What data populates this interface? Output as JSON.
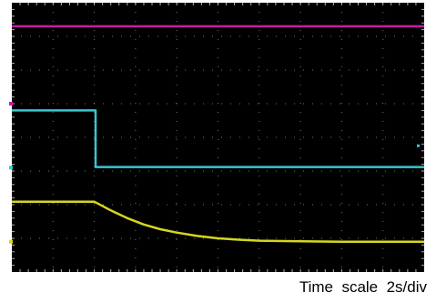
{
  "chart_data": {
    "type": "line",
    "xlabel": "",
    "ylabel": "",
    "grid": true,
    "divisions": {
      "x": 10,
      "y": 8
    },
    "caption": "Time  scale  2s/div",
    "colors": {
      "background": "#000000",
      "grid": "#ffffff",
      "magenta": "#c81aa8",
      "cyan": "#39c6cf",
      "yellow": "#d6d621"
    },
    "series": [
      {
        "color": "#c81aa8",
        "x": [
          0,
          10
        ],
        "y": [
          7.3,
          7.3
        ]
      },
      {
        "color": "#39c6cf",
        "x": [
          0,
          2.03,
          2.03,
          10
        ],
        "y": [
          4.8,
          4.8,
          3.12,
          3.12
        ]
      },
      {
        "color": "#d6d621",
        "x": [
          0,
          2.0,
          2.4,
          2.8,
          3.2,
          3.6,
          4.0,
          4.5,
          5.0,
          5.5,
          6.0,
          7.0,
          8.0,
          9.0,
          10
        ],
        "y": [
          2.09,
          2.09,
          1.83,
          1.6,
          1.41,
          1.27,
          1.17,
          1.07,
          1.0,
          0.96,
          0.93,
          0.91,
          0.9,
          0.9,
          0.9
        ]
      }
    ],
    "markers": [
      {
        "color": "#c81aa8",
        "y": 5.0
      },
      {
        "color": "#39c6cf",
        "y": 3.1
      },
      {
        "color": "#d6d621",
        "y": 0.9
      }
    ],
    "side_marker_right": {
      "color": "#39c6cf",
      "y": 3.75
    }
  }
}
